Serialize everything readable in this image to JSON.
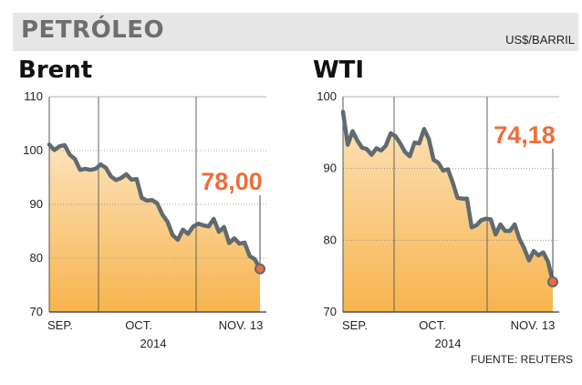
{
  "header": {
    "title": "PETRÓLEO",
    "unit": "US$/BARRIL"
  },
  "source": "FUENTE: REUTERS",
  "colors": {
    "line": "#5f6a71",
    "fill_top": "#fce3bc",
    "fill_bottom": "#f7b44e",
    "highlight": "#ef6d3a",
    "header_bg": "#e6e6e6",
    "grid": "#7a7a7a"
  },
  "chart_data": [
    {
      "type": "area",
      "title": "Brent",
      "ylim": [
        70,
        110
      ],
      "y_ticks": [
        "110",
        "100",
        "90",
        "80",
        "70"
      ],
      "x_ticks": [
        "SEP.",
        "OCT.",
        "NOV. 13"
      ],
      "x_sublabel": "2014",
      "last_value_label": "78,00",
      "series": [
        {
          "values": [
            101.1,
            100.1,
            100.8,
            101.0,
            99.2,
            98.4,
            96.4,
            96.6,
            96.4,
            96.6,
            97.4,
            96.8,
            95.2,
            94.5,
            94.9,
            95.6,
            94.6,
            94.7,
            91.2,
            90.7,
            90.8,
            90.2,
            88.1,
            86.8,
            84.3,
            83.4,
            85.3,
            84.5,
            85.9,
            86.4,
            86.1,
            85.9,
            87.3,
            84.9,
            85.8,
            82.8,
            83.7,
            82.7,
            82.9,
            80.4,
            79.8,
            78.0
          ]
        }
      ]
    },
    {
      "type": "area",
      "title": "WTI",
      "ylim": [
        70,
        100
      ],
      "y_ticks": [
        "100",
        "90",
        "80",
        "70"
      ],
      "x_ticks": [
        "SEP.",
        "OCT.",
        "NOV. 13"
      ],
      "x_sublabel": "2014",
      "last_value_label": "74,18",
      "series": [
        {
          "values": [
            97.9,
            93.3,
            95.2,
            93.9,
            92.9,
            92.7,
            91.9,
            92.8,
            92.5,
            93.2,
            94.9,
            94.5,
            93.5,
            92.3,
            91.7,
            93.6,
            93.5,
            95.5,
            94.1,
            91.2,
            90.8,
            89.7,
            89.9,
            88.1,
            85.9,
            85.8,
            85.8,
            81.8,
            82.1,
            82.8,
            83.0,
            82.9,
            80.8,
            82.2,
            81.3,
            81.3,
            82.2,
            80.2,
            78.9,
            77.2,
            78.5,
            77.9,
            78.3,
            77.0,
            74.2
          ]
        }
      ]
    }
  ]
}
